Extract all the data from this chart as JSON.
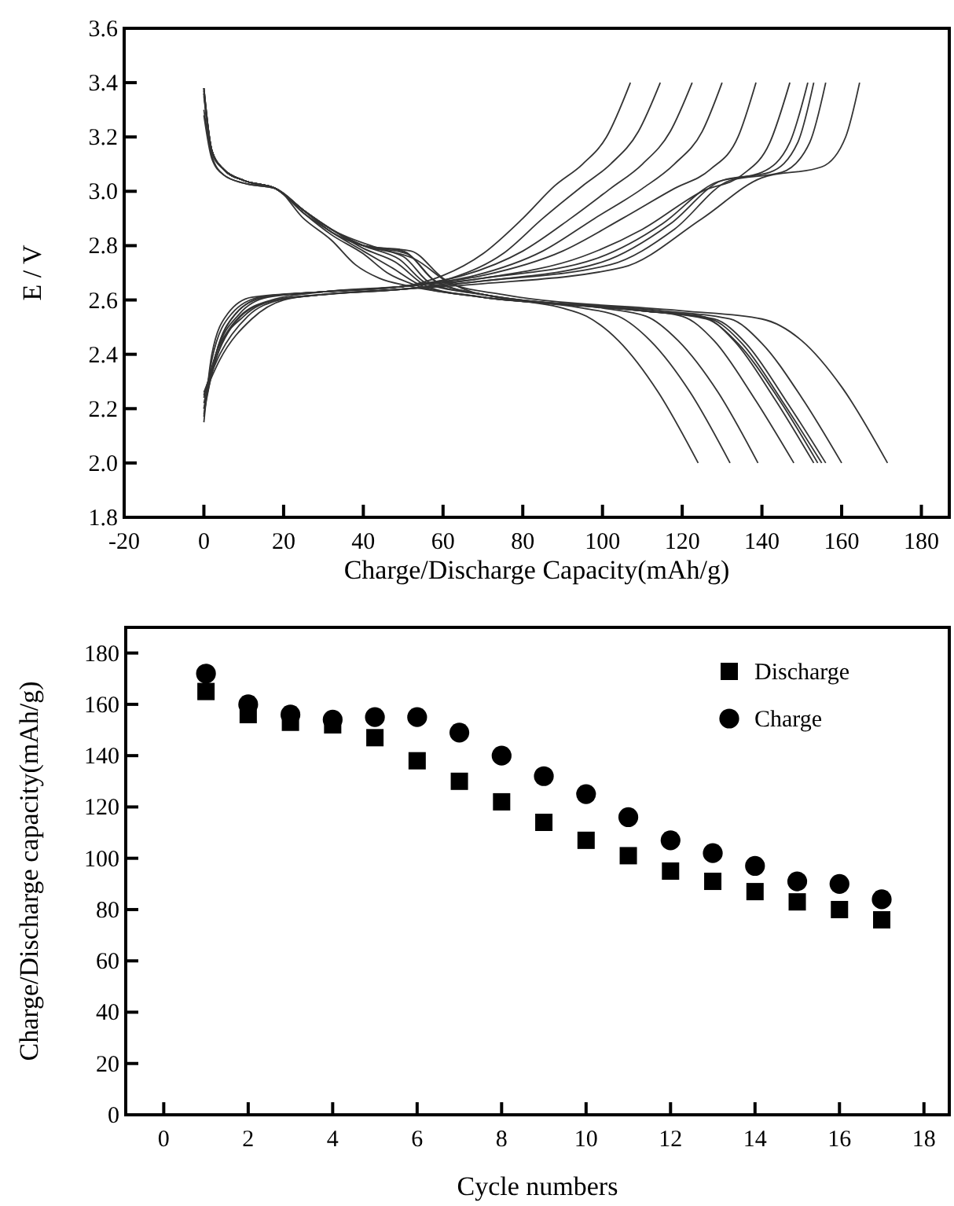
{
  "chart_data": [
    {
      "type": "line",
      "xlabel": "Charge/Discharge Capacity(mAh/g)",
      "ylabel": "E / V",
      "xlim": [
        -20,
        187
      ],
      "ylim": [
        1.8,
        3.6
      ],
      "xticks": [
        -20,
        0,
        20,
        40,
        60,
        80,
        100,
        120,
        140,
        160,
        180
      ],
      "yticks": [
        {
          "value": 1.8,
          "label": "1.8"
        },
        {
          "value": 2,
          "label": "2.0"
        },
        {
          "value": 2.2,
          "label": "2.2"
        },
        {
          "value": 2.4,
          "label": "2.4"
        },
        {
          "value": 2.6,
          "label": "2.6"
        },
        {
          "value": 2.8,
          "label": "2.8"
        },
        {
          "value": 3,
          "label": "3.0"
        },
        {
          "value": 3.2,
          "label": "3.2"
        },
        {
          "value": 3.4,
          "label": "3.4"
        },
        {
          "value": 3.6,
          "label": "3.6"
        }
      ],
      "grid": false,
      "legend": false,
      "line_style": "solid",
      "marker": "none",
      "series": [
        {
          "color": "#333333",
          "x": [
            0,
            2,
            6,
            12,
            30,
            50,
            60,
            70,
            80,
            88,
            95,
            101,
            107
          ],
          "values": [
            2.15,
            2.4,
            2.55,
            2.61,
            2.63,
            2.65,
            2.69,
            2.77,
            2.9,
            3.02,
            3.1,
            3.2,
            3.4
          ]
        },
        {
          "color": "#333333",
          "x": [
            0,
            2,
            7,
            14,
            30,
            50,
            62,
            75,
            85,
            95,
            102,
            109,
            114.5
          ],
          "values": [
            2.17,
            2.38,
            2.55,
            2.61,
            2.63,
            2.65,
            2.68,
            2.77,
            2.9,
            3.02,
            3.1,
            3.22,
            3.4
          ]
        },
        {
          "color": "#333333",
          "x": [
            0,
            3,
            8,
            15,
            30,
            50,
            65,
            80,
            92,
            102,
            110,
            117,
            122.5
          ],
          "values": [
            2.18,
            2.4,
            2.55,
            2.61,
            2.63,
            2.65,
            2.69,
            2.78,
            2.9,
            3.01,
            3.1,
            3.22,
            3.4
          ]
        },
        {
          "color": "#333333",
          "x": [
            0,
            3,
            8,
            15,
            30,
            50,
            68,
            85,
            98,
            110,
            118,
            125,
            130
          ],
          "values": [
            2.2,
            2.4,
            2.55,
            2.61,
            2.63,
            2.65,
            2.69,
            2.78,
            2.9,
            3.01,
            3.1,
            3.22,
            3.4
          ]
        },
        {
          "color": "#333333",
          "x": [
            0,
            3,
            9,
            16,
            30,
            50,
            70,
            90,
            105,
            118,
            127,
            134,
            138.5
          ],
          "values": [
            2.22,
            2.4,
            2.55,
            2.61,
            2.63,
            2.65,
            2.69,
            2.78,
            2.9,
            3.01,
            3.08,
            3.2,
            3.4
          ]
        },
        {
          "color": "#333333",
          "x": [
            0,
            3,
            9,
            17,
            30,
            50,
            70,
            95,
            110,
            125,
            135,
            142,
            147
          ],
          "values": [
            2.2,
            2.38,
            2.54,
            2.6,
            2.63,
            2.65,
            2.68,
            2.76,
            2.86,
            3,
            3.06,
            3.18,
            3.4
          ]
        },
        {
          "color": "#333333",
          "x": [
            0,
            3,
            10,
            18,
            30,
            50,
            70,
            98,
            115,
            128,
            140,
            147,
            151.5
          ],
          "values": [
            2.24,
            2.4,
            2.54,
            2.6,
            2.62,
            2.64,
            2.68,
            2.75,
            2.88,
            3.03,
            3.07,
            3.18,
            3.4
          ]
        },
        {
          "color": "#333333",
          "x": [
            0,
            4,
            10,
            18,
            30,
            50,
            70,
            100,
            117,
            130,
            142,
            149,
            153
          ],
          "values": [
            2.25,
            2.42,
            2.55,
            2.6,
            2.62,
            2.64,
            2.67,
            2.74,
            2.88,
            3.04,
            3.07,
            3.18,
            3.4
          ]
        },
        {
          "color": "#333333",
          "x": [
            0,
            4,
            11,
            19,
            30,
            50,
            70,
            102,
            118,
            132,
            145,
            152,
            156
          ],
          "values": [
            2.26,
            2.4,
            2.54,
            2.6,
            2.62,
            2.64,
            2.67,
            2.73,
            2.86,
            3.04,
            3.07,
            3.18,
            3.4
          ]
        },
        {
          "color": "#333333",
          "x": [
            0,
            4,
            12,
            20,
            30,
            50,
            70,
            105,
            125,
            140,
            155,
            161,
            164.5
          ],
          "values": [
            2.25,
            2.38,
            2.53,
            2.6,
            2.62,
            2.64,
            2.66,
            2.72,
            2.9,
            3.05,
            3.09,
            3.2,
            3.4
          ]
        },
        {
          "color": "#333333",
          "x": [
            0,
            2,
            5,
            10,
            18,
            25,
            32,
            38,
            44,
            52,
            70,
            90,
            96,
            104,
            114,
            124
          ],
          "values": [
            3.28,
            3.12,
            3.06,
            3.03,
            3.01,
            2.9,
            2.82,
            2.73,
            2.68,
            2.65,
            2.61,
            2.57,
            2.54,
            2.45,
            2.26,
            2
          ]
        },
        {
          "color": "#333333",
          "x": [
            0,
            2,
            5,
            10,
            18,
            25,
            32,
            40,
            46,
            54,
            70,
            95,
            104,
            112,
            122,
            132
          ],
          "values": [
            3.38,
            3.15,
            3.08,
            3.04,
            3.01,
            2.92,
            2.84,
            2.77,
            2.7,
            2.65,
            2.61,
            2.57,
            2.54,
            2.45,
            2.26,
            2
          ]
        },
        {
          "color": "#333333",
          "x": [
            0,
            2,
            5,
            10,
            18,
            25,
            32,
            40,
            47,
            55,
            70,
            100,
            111,
            119,
            129,
            139
          ],
          "values": [
            3.36,
            3.15,
            3.08,
            3.04,
            3.01,
            2.92,
            2.85,
            2.78,
            2.72,
            2.65,
            2.61,
            2.57,
            2.54,
            2.45,
            2.26,
            2
          ]
        },
        {
          "color": "#333333",
          "x": [
            0,
            2,
            5,
            10,
            18,
            25,
            32,
            40,
            48,
            56,
            70,
            105,
            120,
            128,
            138,
            148
          ],
          "values": [
            3.35,
            3.15,
            3.08,
            3.04,
            3.01,
            2.93,
            2.86,
            2.79,
            2.74,
            2.65,
            2.61,
            2.57,
            2.54,
            2.45,
            2.24,
            2
          ]
        },
        {
          "color": "#333333",
          "x": [
            0,
            2,
            5,
            10,
            18,
            25,
            32,
            40,
            49,
            56,
            70,
            110,
            125,
            133,
            143,
            153
          ],
          "values": [
            3.37,
            3.14,
            3.08,
            3.04,
            3.01,
            2.93,
            2.86,
            2.8,
            2.75,
            2.66,
            2.62,
            2.56,
            2.54,
            2.45,
            2.24,
            2
          ]
        },
        {
          "color": "#333333",
          "x": [
            0,
            2,
            5,
            10,
            18,
            25,
            32,
            40,
            50,
            57,
            70,
            110,
            126,
            134,
            144,
            154
          ],
          "values": [
            3.36,
            3.15,
            3.08,
            3.04,
            3.01,
            2.93,
            2.86,
            2.8,
            2.76,
            2.66,
            2.62,
            2.56,
            2.53,
            2.44,
            2.24,
            2
          ]
        },
        {
          "color": "#333333",
          "x": [
            0,
            2,
            5,
            10,
            18,
            25,
            32,
            40,
            50,
            58,
            70,
            110,
            127,
            135,
            145,
            155
          ],
          "values": [
            3.38,
            3.15,
            3.08,
            3.04,
            3.01,
            2.93,
            2.85,
            2.8,
            2.78,
            2.67,
            2.62,
            2.56,
            2.53,
            2.44,
            2.23,
            2
          ]
        },
        {
          "color": "#333333",
          "x": [
            0,
            2,
            5,
            10,
            18,
            25,
            32,
            40,
            51,
            58,
            70,
            110,
            128,
            136,
            146,
            156
          ],
          "values": [
            3.3,
            3.13,
            3.06,
            3.03,
            3.01,
            2.93,
            2.85,
            2.8,
            2.77,
            2.67,
            2.62,
            2.56,
            2.53,
            2.44,
            2.23,
            2
          ]
        },
        {
          "color": "#333333",
          "x": [
            0,
            2,
            5,
            10,
            18,
            25,
            32,
            40,
            52,
            60,
            70,
            115,
            132,
            140,
            150,
            160
          ],
          "values": [
            3.37,
            3.15,
            3.08,
            3.04,
            3.01,
            2.93,
            2.86,
            2.8,
            2.78,
            2.68,
            2.62,
            2.56,
            2.53,
            2.44,
            2.24,
            2
          ]
        },
        {
          "color": "#333333",
          "x": [
            0,
            2,
            5,
            10,
            18,
            25,
            32,
            44,
            53,
            62,
            75,
            120,
            140,
            150,
            160,
            171.5
          ],
          "values": [
            3.38,
            3.15,
            3.08,
            3.04,
            3.01,
            2.93,
            2.86,
            2.79,
            2.75,
            2.66,
            2.62,
            2.56,
            2.53,
            2.45,
            2.28,
            2
          ]
        }
      ]
    },
    {
      "type": "scatter",
      "xlabel": "Cycle numbers",
      "ylabel": "Charge/Discharge capacity(mAh/g)",
      "xlim": [
        -0.9,
        18.6
      ],
      "ylim": [
        0,
        190
      ],
      "xticks": [
        0,
        2,
        4,
        6,
        8,
        10,
        12,
        14,
        16,
        18
      ],
      "yticks": [
        0,
        20,
        40,
        60,
        80,
        100,
        120,
        140,
        160,
        180
      ],
      "grid": false,
      "legend": "top right",
      "x": [
        1,
        2,
        3,
        4,
        5,
        6,
        7,
        8,
        9,
        10,
        11,
        12,
        13,
        14,
        15,
        16,
        17
      ],
      "series": [
        {
          "name": "Discharge",
          "color": "#000000",
          "marker": "square",
          "values": [
            165,
            156,
            153,
            152,
            147,
            138,
            130,
            122,
            114,
            107,
            101,
            95,
            91,
            87,
            83,
            80,
            76
          ]
        },
        {
          "name": "Charge",
          "color": "#000000",
          "marker": "circle",
          "values": [
            172,
            160,
            156,
            154,
            155,
            155,
            149,
            140,
            132,
            125,
            116,
            107,
            102,
            97,
            91,
            90,
            84
          ]
        }
      ]
    }
  ]
}
